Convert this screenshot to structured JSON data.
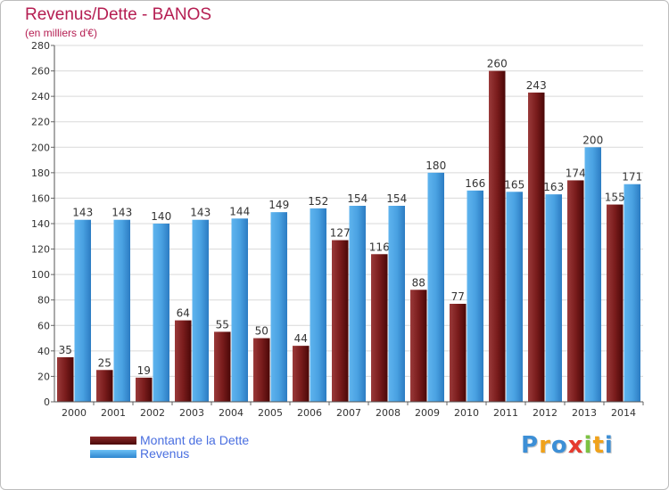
{
  "header": {
    "title": "Revenus/Dette - BANOS",
    "subtitle": "(en milliers d'€)"
  },
  "chart_data": {
    "type": "bar",
    "title": "Revenus/Dette - BANOS",
    "ylabel": "(en milliers d'€)",
    "xlabel": "",
    "categories": [
      "2000",
      "2001",
      "2002",
      "2003",
      "2004",
      "2005",
      "2006",
      "2007",
      "2008",
      "2009",
      "2010",
      "2011",
      "2012",
      "2013",
      "2014"
    ],
    "series": [
      {
        "name": "Montant de la Dette",
        "color": "#7a1c1c",
        "values": [
          35,
          25,
          19,
          64,
          55,
          50,
          44,
          127,
          116,
          88,
          77,
          260,
          243,
          174,
          155
        ]
      },
      {
        "name": "Revenus",
        "color": "#4ba3e3",
        "values": [
          143,
          143,
          140,
          143,
          144,
          149,
          152,
          154,
          154,
          180,
          166,
          165,
          163,
          200,
          171
        ]
      }
    ],
    "ylim": [
      0,
      280
    ],
    "yticks": [
      0,
      20,
      40,
      60,
      80,
      100,
      120,
      140,
      160,
      180,
      200,
      220,
      240,
      260,
      280
    ],
    "grid": true,
    "legend": "bottom-left"
  },
  "legend": {
    "items": [
      {
        "label": "Montant de la Dette",
        "color": "#6b1414"
      },
      {
        "label": "Revenus",
        "color": "#4ba3e3"
      }
    ]
  },
  "logo": {
    "letters": [
      {
        "ch": "P",
        "color": "#3d8fd6"
      },
      {
        "ch": "r",
        "color": "#f0a21b"
      },
      {
        "ch": "o",
        "color": "#3d8fd6"
      },
      {
        "ch": "x",
        "color": "#e63a2e"
      },
      {
        "ch": "i",
        "color": "#7cc242"
      },
      {
        "ch": "t",
        "color": "#f0a21b"
      },
      {
        "ch": "i",
        "color": "#3d8fd6"
      }
    ]
  }
}
